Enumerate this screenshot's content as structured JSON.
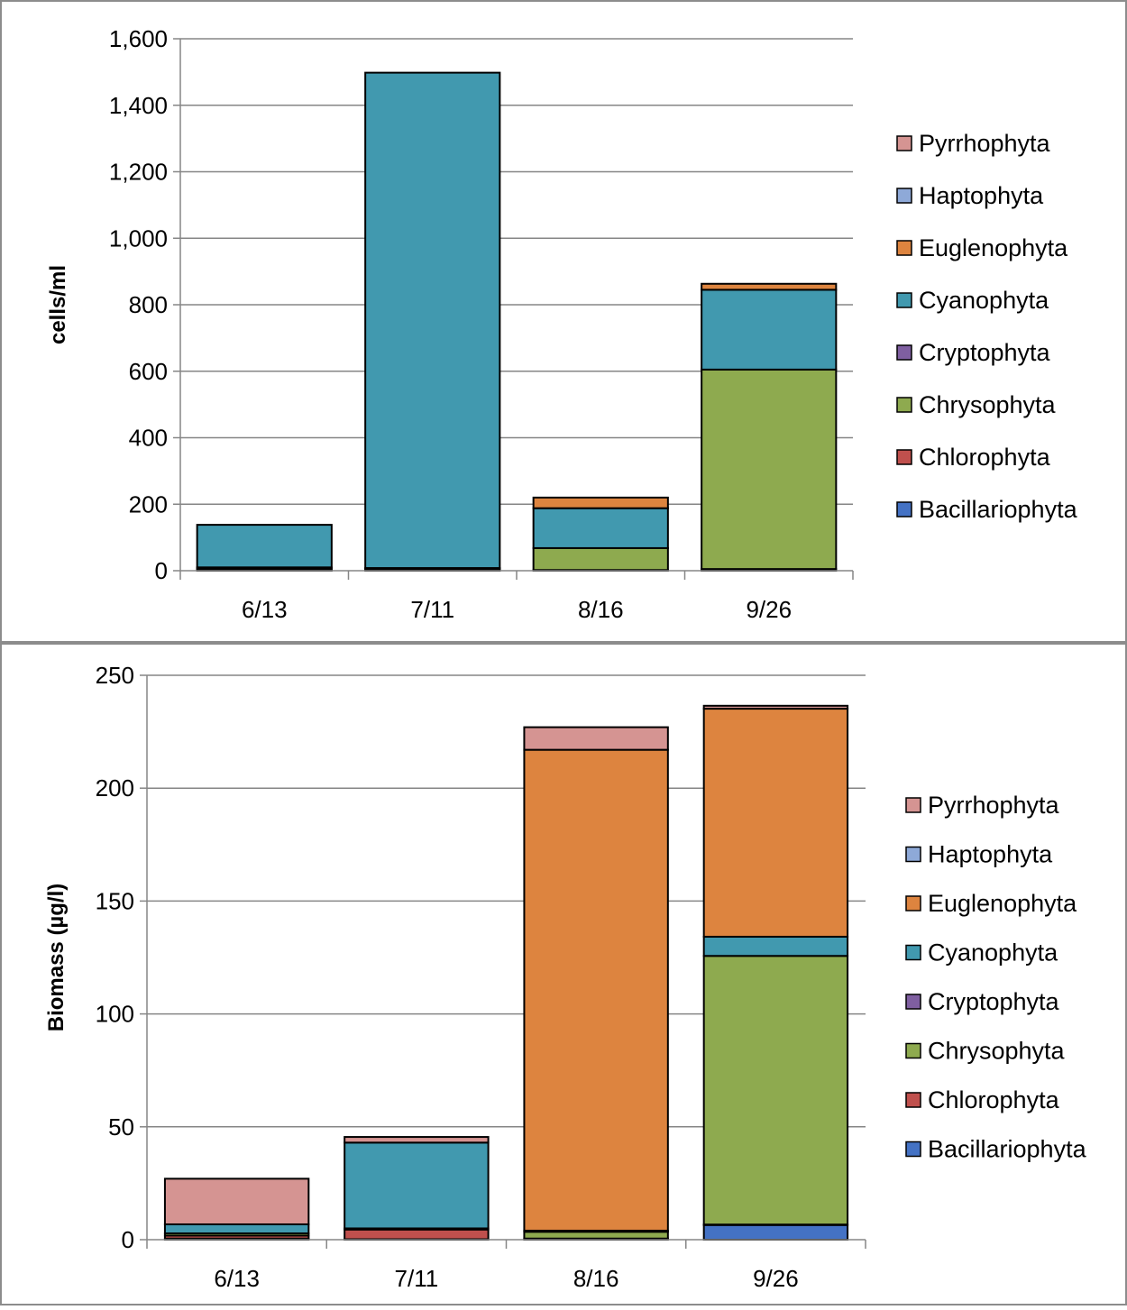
{
  "chart_data": [
    {
      "type": "bar",
      "stacked": true,
      "categories": [
        "6/13",
        "7/11",
        "8/16",
        "9/26"
      ],
      "xlabel": "",
      "ylabel": "cells/ml",
      "ylim": [
        0,
        1600
      ],
      "yticks": [
        0,
        200,
        400,
        600,
        800,
        1000,
        1200,
        1400,
        1600
      ],
      "ytick_labels": [
        "0",
        "200",
        "400",
        "600",
        "800",
        "1,000",
        "1,200",
        "1,400",
        "1,600"
      ],
      "grid": true,
      "legend_position": "right",
      "series": [
        {
          "name": "Bacillariophyta",
          "color": "#4472C4",
          "values": [
            3,
            3,
            2,
            5
          ]
        },
        {
          "name": "Chlorophyta",
          "color": "#C0504D",
          "values": [
            4,
            3,
            0,
            0
          ]
        },
        {
          "name": "Chrysophyta",
          "color": "#8EAA4F",
          "values": [
            3,
            2,
            66,
            600
          ]
        },
        {
          "name": "Cryptophyta",
          "color": "#7F5FA1",
          "values": [
            0,
            0,
            0,
            0
          ]
        },
        {
          "name": "Cyanophyta",
          "color": "#4199AF",
          "values": [
            128,
            1490,
            120,
            240
          ]
        },
        {
          "name": "Euglenophyta",
          "color": "#DD843F",
          "values": [
            0,
            0,
            32,
            18
          ]
        },
        {
          "name": "Haptophyta",
          "color": "#8EA9D8",
          "values": [
            0,
            0,
            0,
            0
          ]
        },
        {
          "name": "Pyrrhophyta",
          "color": "#D59492",
          "values": [
            0,
            0,
            0,
            0
          ]
        }
      ]
    },
    {
      "type": "bar",
      "stacked": true,
      "categories": [
        "6/13",
        "7/11",
        "8/16",
        "9/26"
      ],
      "xlabel": "",
      "ylabel": "Biomass (µg/l)",
      "ylim": [
        0,
        250
      ],
      "yticks": [
        0,
        50,
        100,
        150,
        200,
        250
      ],
      "ytick_labels": [
        "0",
        "50",
        "100",
        "150",
        "200",
        "250"
      ],
      "grid": true,
      "legend_position": "right",
      "series": [
        {
          "name": "Bacillariophyta",
          "color": "#4472C4",
          "values": [
            0.5,
            0.2,
            0.2,
            6.5
          ]
        },
        {
          "name": "Chlorophyta",
          "color": "#C0504D",
          "values": [
            1.3,
            4.3,
            0.3,
            0.2
          ]
        },
        {
          "name": "Chrysophyta",
          "color": "#8EAA4F",
          "values": [
            1.0,
            0.5,
            3.0,
            119
          ]
        },
        {
          "name": "Cryptophyta",
          "color": "#7F5FA1",
          "values": [
            0,
            0,
            0,
            0
          ]
        },
        {
          "name": "Cyanophyta",
          "color": "#4199AF",
          "values": [
            4.0,
            38.0,
            0.5,
            8.5
          ]
        },
        {
          "name": "Euglenophyta",
          "color": "#DD843F",
          "values": [
            0,
            0,
            213,
            101
          ]
        },
        {
          "name": "Haptophyta",
          "color": "#8EA9D8",
          "values": [
            0,
            0,
            0,
            0
          ]
        },
        {
          "name": "Pyrrhophyta",
          "color": "#D59492",
          "values": [
            20.2,
            2.5,
            10,
            1.3
          ]
        }
      ]
    }
  ]
}
